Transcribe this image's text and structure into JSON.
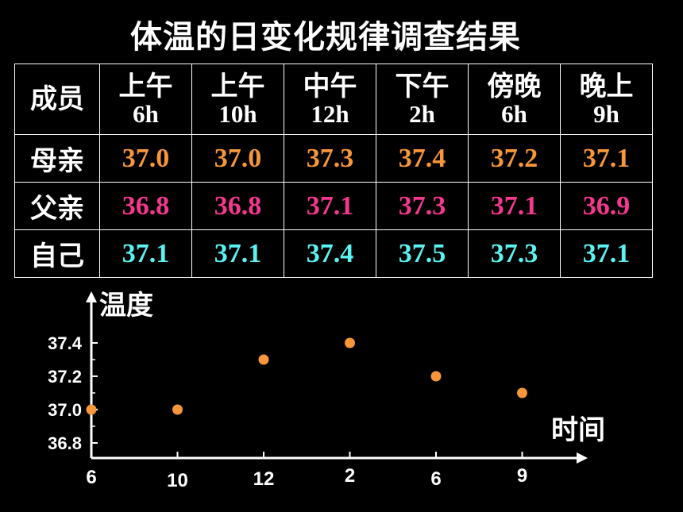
{
  "title": "体温的日变化规律调查结果",
  "table": {
    "member_header": "成员",
    "times": [
      {
        "label": "上午",
        "hour": "6h"
      },
      {
        "label": "上午",
        "hour": "10h"
      },
      {
        "label": "中午",
        "hour": "12h"
      },
      {
        "label": "下午",
        "hour": "2h"
      },
      {
        "label": "傍晚",
        "hour": "6h"
      },
      {
        "label": "晚上",
        "hour": "9h"
      }
    ],
    "rows": [
      {
        "name": "母亲",
        "color": "#f7963a",
        "values": [
          "37.0",
          "37.0",
          "37.3",
          "37.4",
          "37.2",
          "37.1"
        ]
      },
      {
        "name": "父亲",
        "color": "#f5378f",
        "values": [
          "36.8",
          "36.8",
          "37.1",
          "37.3",
          "37.1",
          "36.9"
        ]
      },
      {
        "name": "自己",
        "color": "#5cf2f2",
        "values": [
          "37.1",
          "37.1",
          "37.4",
          "37.5",
          "37.3",
          "37.1"
        ]
      }
    ]
  },
  "chart_data": {
    "type": "scatter",
    "title": "",
    "xlabel": "时间",
    "ylabel": "温度",
    "x_tick_labels": [
      "6",
      "10",
      "12",
      "2",
      "6",
      "9"
    ],
    "y_tick_labels": [
      "36.8",
      "37.0",
      "37.2",
      "37.4"
    ],
    "ylim": [
      36.7,
      37.6
    ],
    "grid": false,
    "point_color": "#f7963a",
    "series": [
      {
        "values": [
          37.0,
          37.0,
          37.3,
          37.4,
          37.2,
          37.1
        ]
      }
    ]
  }
}
